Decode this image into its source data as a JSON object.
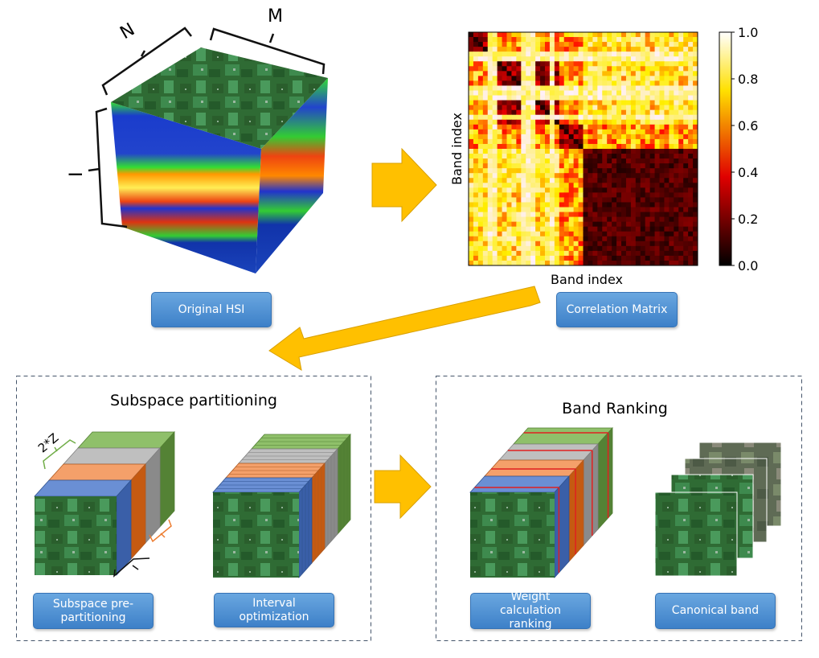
{
  "hsi_cube": {
    "dim_n": "N",
    "dim_m": "M",
    "dim_l": "I"
  },
  "correlation": {
    "x_label": "Band index",
    "y_label": "Band index",
    "colorbar_ticks": [
      "1.0",
      "0.8",
      "0.6",
      "0.4",
      "0.2",
      "0.0"
    ],
    "colormap": "hot"
  },
  "labels": {
    "original_hsi": "Original HSI",
    "correlation_matrix": "Correlation Matrix",
    "subspace_pre_partitioning": "Subspace pre-partitioning",
    "interval_optimization": "Interval optimization",
    "weight_calculation_ranking": "Weight calculation ranking",
    "canonical_band": "Canonical band"
  },
  "panels": {
    "subspace_title": "Subspace partitioning",
    "ranking_title": "Band Ranking",
    "width_label": "2*Z"
  },
  "colors": {
    "arrow": "#ffc000",
    "slab_blue": "#4472c4",
    "slab_orange": "#ed7d31",
    "slab_gray": "#a5a5a5",
    "slab_green": "#70ad47",
    "button": "#5b9bd5",
    "dashed_border": "#44546a"
  }
}
